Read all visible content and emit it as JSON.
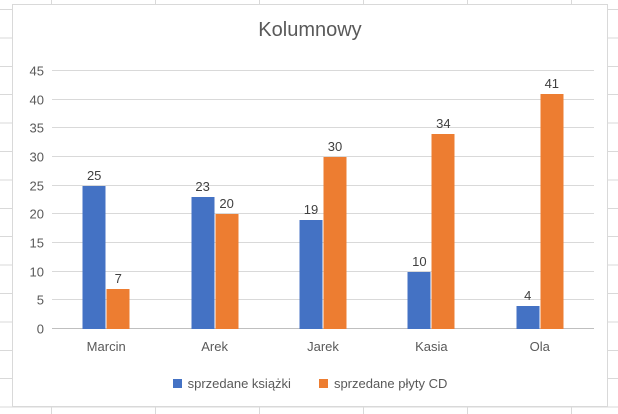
{
  "chart_data": {
    "type": "bar",
    "title": "Kolumnowy",
    "categories": [
      "Marcin",
      "Arek",
      "Jarek",
      "Kasia",
      "Ola"
    ],
    "series": [
      {
        "name": "sprzedane książki",
        "color": "#4472C4",
        "values": [
          25,
          23,
          19,
          10,
          4
        ]
      },
      {
        "name": "sprzedane płyty CD",
        "color": "#ED7D31",
        "values": [
          7,
          20,
          30,
          34,
          41
        ]
      }
    ],
    "ylim": [
      0,
      45
    ],
    "yticks": [
      0,
      5,
      10,
      15,
      20,
      25,
      30,
      35,
      40,
      45
    ],
    "grid": true,
    "legend_position": "bottom",
    "data_labels": true
  },
  "colors": {
    "series_blue": "#4472C4",
    "series_orange": "#ED7D31",
    "gridline": "#d9d9d9",
    "axis_line": "#bfbfbf",
    "text": "#595959",
    "data_label_text": "#404040",
    "chart_border": "#d9d9d9"
  }
}
